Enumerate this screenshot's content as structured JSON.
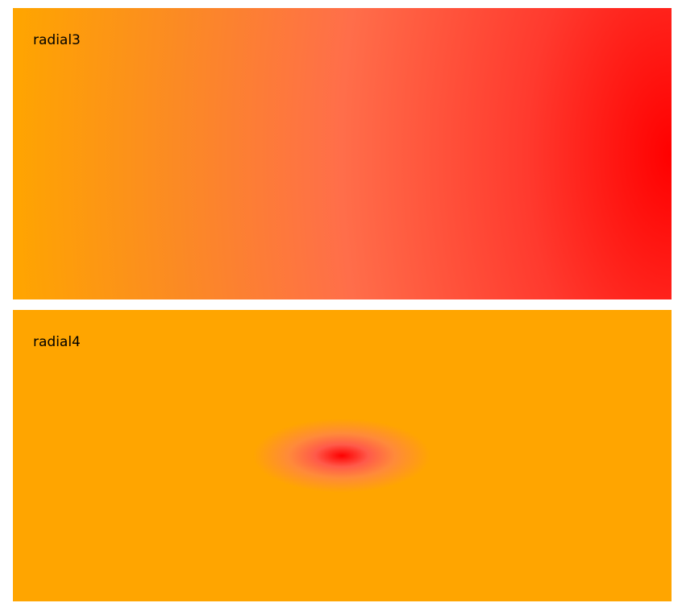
{
  "panels": [
    {
      "label": "radial3"
    },
    {
      "label": "radial4"
    }
  ],
  "colors": {
    "outer": "#ffa500",
    "inner": "#ff0000",
    "page_background": "#ffffff",
    "text": "#000000"
  }
}
